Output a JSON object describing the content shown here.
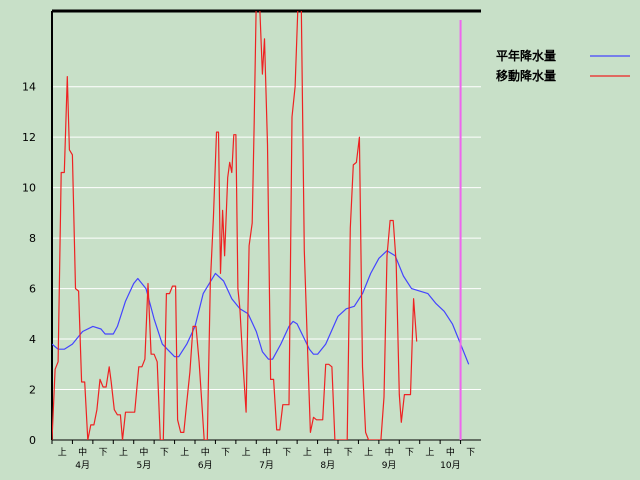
{
  "chart_data": {
    "type": "line",
    "title": "",
    "xlabel": "",
    "ylabel": "",
    "ylim": [
      0,
      17
    ],
    "yticks": [
      0,
      2,
      4,
      6,
      8,
      10,
      12,
      14
    ],
    "x_range": [
      0,
      21
    ],
    "categories": [
      {
        "dekad": "上",
        "month": ""
      },
      {
        "dekad": "中",
        "month": "4月"
      },
      {
        "dekad": "下",
        "month": ""
      },
      {
        "dekad": "上",
        "month": ""
      },
      {
        "dekad": "中",
        "month": "5月"
      },
      {
        "dekad": "下",
        "month": ""
      },
      {
        "dekad": "上",
        "month": ""
      },
      {
        "dekad": "中",
        "month": "6月"
      },
      {
        "dekad": "下",
        "month": ""
      },
      {
        "dekad": "上",
        "month": ""
      },
      {
        "dekad": "中",
        "month": "7月"
      },
      {
        "dekad": "下",
        "month": ""
      },
      {
        "dekad": "上",
        "month": ""
      },
      {
        "dekad": "中",
        "month": "8月"
      },
      {
        "dekad": "下",
        "month": ""
      },
      {
        "dekad": "上",
        "month": ""
      },
      {
        "dekad": "中",
        "month": "9月"
      },
      {
        "dekad": "下",
        "month": ""
      },
      {
        "dekad": "上",
        "month": ""
      },
      {
        "dekad": "中",
        "month": "10月"
      },
      {
        "dekad": "下",
        "month": ""
      }
    ],
    "grid": true,
    "legend": "top-right",
    "series": [
      {
        "name": "平年降水量",
        "color": "#4444ff",
        "points": [
          [
            0,
            3.8
          ],
          [
            0.3,
            3.6
          ],
          [
            0.6,
            3.6
          ],
          [
            1.0,
            3.8
          ],
          [
            1.5,
            4.3
          ],
          [
            2.0,
            4.5
          ],
          [
            2.4,
            4.4
          ],
          [
            2.6,
            4.2
          ],
          [
            3.0,
            4.2
          ],
          [
            3.2,
            4.5
          ],
          [
            3.6,
            5.5
          ],
          [
            4.0,
            6.2
          ],
          [
            4.2,
            6.4
          ],
          [
            4.6,
            6.0
          ],
          [
            5.0,
            4.8
          ],
          [
            5.4,
            3.8
          ],
          [
            6.0,
            3.3
          ],
          [
            6.2,
            3.3
          ],
          [
            6.6,
            3.8
          ],
          [
            7.0,
            4.5
          ],
          [
            7.4,
            5.8
          ],
          [
            8.0,
            6.6
          ],
          [
            8.4,
            6.3
          ],
          [
            8.8,
            5.6
          ],
          [
            9.2,
            5.2
          ],
          [
            9.6,
            5.0
          ],
          [
            10.0,
            4.3
          ],
          [
            10.3,
            3.5
          ],
          [
            10.6,
            3.2
          ],
          [
            10.8,
            3.2
          ],
          [
            11.2,
            3.8
          ],
          [
            11.6,
            4.5
          ],
          [
            11.8,
            4.7
          ],
          [
            12.0,
            4.6
          ],
          [
            12.6,
            3.6
          ],
          [
            12.8,
            3.4
          ],
          [
            13.0,
            3.4
          ],
          [
            13.4,
            3.8
          ],
          [
            14.0,
            4.9
          ],
          [
            14.4,
            5.2
          ],
          [
            14.8,
            5.3
          ],
          [
            15.2,
            5.8
          ],
          [
            15.6,
            6.6
          ],
          [
            16.0,
            7.2
          ],
          [
            16.4,
            7.5
          ],
          [
            16.8,
            7.3
          ],
          [
            17.2,
            6.5
          ],
          [
            17.6,
            6.0
          ],
          [
            18.0,
            5.9
          ],
          [
            18.4,
            5.8
          ],
          [
            18.8,
            5.4
          ],
          [
            19.2,
            5.1
          ],
          [
            19.6,
            4.6
          ],
          [
            20.0,
            3.8
          ],
          [
            20.4,
            3.0
          ]
        ]
      },
      {
        "name": "移動降水量",
        "color": "#ee2222",
        "points": [
          [
            0,
            0
          ],
          [
            0.15,
            2.8
          ],
          [
            0.3,
            3.1
          ],
          [
            0.45,
            10.6
          ],
          [
            0.6,
            10.6
          ],
          [
            0.75,
            14.4
          ],
          [
            0.85,
            11.5
          ],
          [
            1.0,
            11.3
          ],
          [
            1.15,
            6.0
          ],
          [
            1.3,
            5.9
          ],
          [
            1.45,
            2.3
          ],
          [
            1.6,
            2.3
          ],
          [
            1.75,
            0
          ],
          [
            1.9,
            0.6
          ],
          [
            2.05,
            0.6
          ],
          [
            2.2,
            1.2
          ],
          [
            2.35,
            2.4
          ],
          [
            2.5,
            2.1
          ],
          [
            2.65,
            2.1
          ],
          [
            2.8,
            2.9
          ],
          [
            2.9,
            2.3
          ],
          [
            3.05,
            1.2
          ],
          [
            3.2,
            1.0
          ],
          [
            3.35,
            1.0
          ],
          [
            3.45,
            0
          ],
          [
            3.6,
            1.1
          ],
          [
            3.75,
            1.1
          ],
          [
            3.9,
            1.1
          ],
          [
            4.05,
            1.1
          ],
          [
            4.25,
            2.9
          ],
          [
            4.4,
            2.9
          ],
          [
            4.55,
            3.2
          ],
          [
            4.7,
            6.2
          ],
          [
            4.85,
            3.4
          ],
          [
            5.0,
            3.4
          ],
          [
            5.15,
            3.1
          ],
          [
            5.3,
            0
          ],
          [
            5.45,
            0
          ],
          [
            5.6,
            5.8
          ],
          [
            5.75,
            5.8
          ],
          [
            5.9,
            6.1
          ],
          [
            6.05,
            6.1
          ],
          [
            6.15,
            0.8
          ],
          [
            6.3,
            0.3
          ],
          [
            6.45,
            0.3
          ],
          [
            6.6,
            1.5
          ],
          [
            6.75,
            2.7
          ],
          [
            6.9,
            4.5
          ],
          [
            7.05,
            4.5
          ],
          [
            7.2,
            3.1
          ],
          [
            7.3,
            1.9
          ],
          [
            7.45,
            0
          ],
          [
            7.6,
            0
          ],
          [
            7.75,
            6.2
          ],
          [
            7.9,
            8.8
          ],
          [
            8.05,
            12.2
          ],
          [
            8.15,
            12.2
          ],
          [
            8.25,
            6.6
          ],
          [
            8.35,
            9.1
          ],
          [
            8.45,
            7.3
          ],
          [
            8.6,
            10.4
          ],
          [
            8.7,
            11.0
          ],
          [
            8.8,
            10.6
          ],
          [
            8.9,
            12.1
          ],
          [
            9.0,
            12.1
          ],
          [
            9.1,
            6.0
          ],
          [
            9.2,
            5.2
          ],
          [
            9.35,
            3.0
          ],
          [
            9.5,
            1.1
          ],
          [
            9.65,
            7.7
          ],
          [
            9.8,
            8.6
          ],
          [
            9.9,
            12.6
          ],
          [
            10.0,
            17.5
          ],
          [
            10.15,
            17.5
          ],
          [
            10.3,
            14.5
          ],
          [
            10.4,
            15.9
          ],
          [
            10.55,
            11.7
          ],
          [
            10.7,
            2.4
          ],
          [
            10.85,
            2.4
          ],
          [
            11.0,
            0.4
          ],
          [
            11.15,
            0.4
          ],
          [
            11.3,
            1.4
          ],
          [
            11.45,
            1.4
          ],
          [
            11.6,
            1.4
          ],
          [
            11.75,
            12.8
          ],
          [
            11.9,
            14.0
          ],
          [
            12.05,
            17.5
          ],
          [
            12.2,
            17.5
          ],
          [
            12.35,
            7.5
          ],
          [
            12.5,
            3.8
          ],
          [
            12.65,
            0.3
          ],
          [
            12.8,
            0.9
          ],
          [
            12.95,
            0.8
          ],
          [
            13.1,
            0.8
          ],
          [
            13.25,
            0.8
          ],
          [
            13.4,
            3.0
          ],
          [
            13.55,
            3.0
          ],
          [
            13.7,
            2.9
          ],
          [
            13.85,
            0
          ],
          [
            14.0,
            0
          ],
          [
            14.15,
            0
          ],
          [
            14.3,
            0
          ],
          [
            14.45,
            0
          ],
          [
            14.6,
            8.4
          ],
          [
            14.75,
            10.9
          ],
          [
            14.9,
            11.0
          ],
          [
            15.05,
            12.0
          ],
          [
            15.2,
            2.9
          ],
          [
            15.35,
            0.3
          ],
          [
            15.5,
            0
          ],
          [
            15.65,
            0
          ],
          [
            15.8,
            0
          ],
          [
            15.95,
            0
          ],
          [
            16.1,
            0
          ],
          [
            16.25,
            1.7
          ],
          [
            16.4,
            7.3
          ],
          [
            16.55,
            8.7
          ],
          [
            16.7,
            8.7
          ],
          [
            16.85,
            7.0
          ],
          [
            17.0,
            1.8
          ],
          [
            17.1,
            0.7
          ],
          [
            17.25,
            1.8
          ],
          [
            17.4,
            1.8
          ],
          [
            17.55,
            1.8
          ],
          [
            17.7,
            5.6
          ],
          [
            17.85,
            3.9
          ]
        ]
      }
    ],
    "marker_line": {
      "x": 20.0,
      "color": "#ee66ee"
    }
  }
}
